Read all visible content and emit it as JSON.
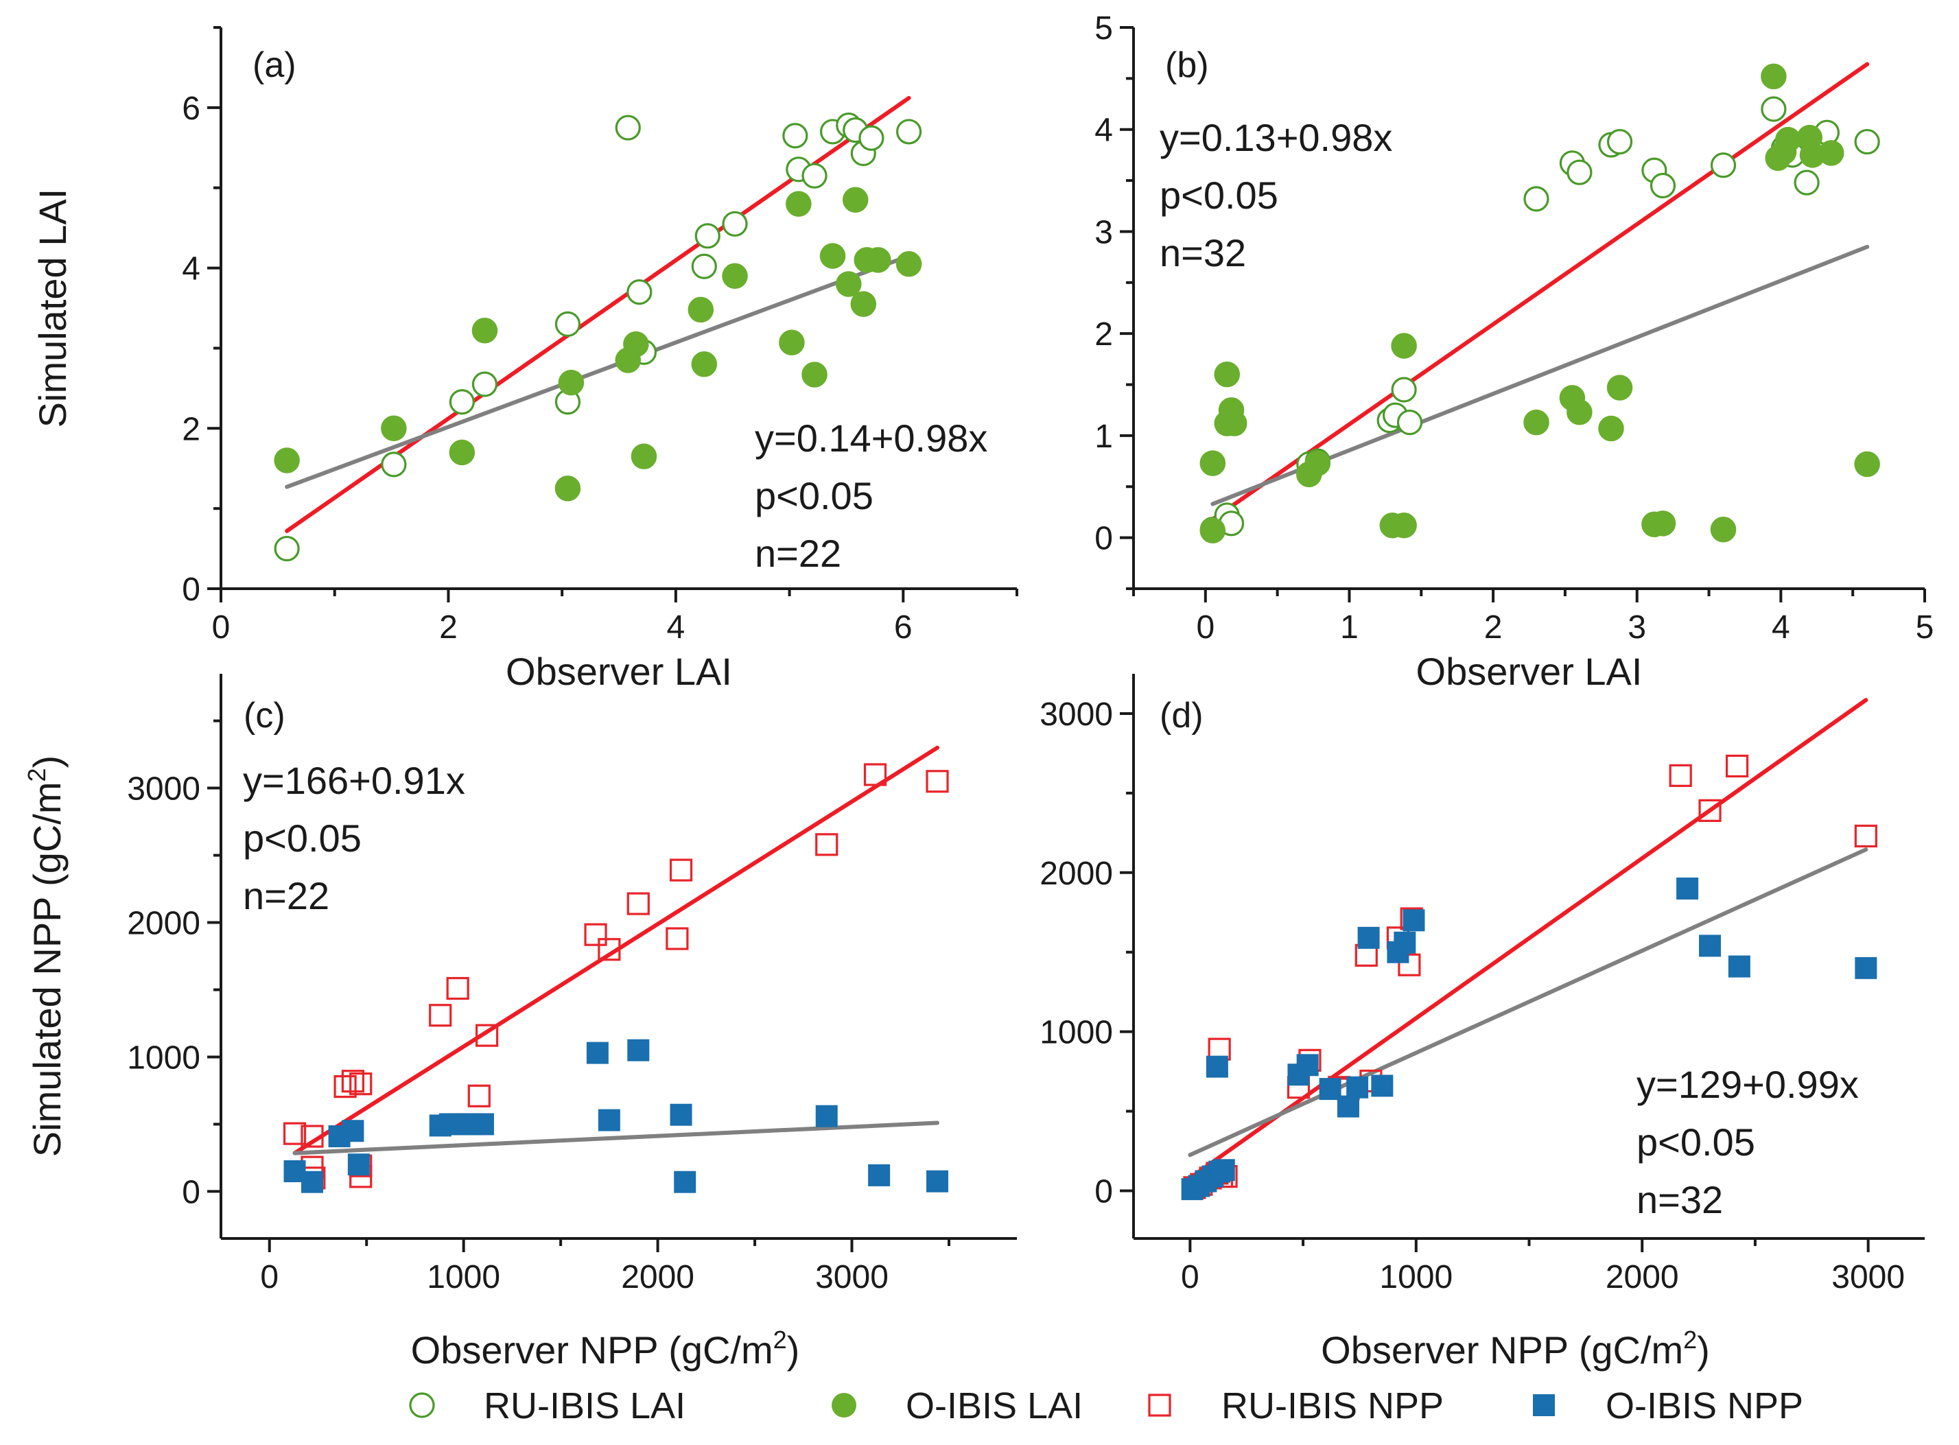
{
  "colors": {
    "ru_lai": "#4a9a2a",
    "o_lai": "#6aae2e",
    "ru_npp": "#e8242a",
    "o_npp": "#1a6fae",
    "ru_line": "#ee1c25",
    "o_line": "#808080"
  },
  "legend": [
    {
      "key": "ru_lai",
      "label": "RU-IBIS LAI",
      "marker": "open-circle"
    },
    {
      "key": "o_lai",
      "label": "O-IBIS LAI",
      "marker": "filled-circle"
    },
    {
      "key": "ru_npp",
      "label": "RU-IBIS NPP",
      "marker": "open-square"
    },
    {
      "key": "o_npp",
      "label": "O-IBIS NPP",
      "marker": "filled-square"
    }
  ],
  "chart_data": [
    {
      "id": "a",
      "type": "scatter",
      "panel_label": "(a)",
      "xlabel": "Observer LAI",
      "ylabel": "Simulated LAI",
      "xlim": [
        0,
        7
      ],
      "ylim": [
        0,
        7
      ],
      "xticks": [
        0,
        2,
        4,
        6
      ],
      "yticks": [
        0,
        2,
        4,
        6
      ],
      "stats": [
        "y=0.14+0.98x",
        "p<0.05",
        "n=22"
      ],
      "stats_position": "bottom-right",
      "series": [
        {
          "name": "RU-IBIS LAI",
          "marker": "open-circle",
          "color": "#4a9a2a",
          "points": [
            [
              0.58,
              0.5
            ],
            [
              1.52,
              1.55
            ],
            [
              2.12,
              2.33
            ],
            [
              2.32,
              2.55
            ],
            [
              3.05,
              3.3
            ],
            [
              3.05,
              2.33
            ],
            [
              3.58,
              5.75
            ],
            [
              3.68,
              3.7
            ],
            [
              3.72,
              2.95
            ],
            [
              4.25,
              4.02
            ],
            [
              4.28,
              4.4
            ],
            [
              4.52,
              4.55
            ],
            [
              5.05,
              5.65
            ],
            [
              5.08,
              5.23
            ],
            [
              5.22,
              5.15
            ],
            [
              5.38,
              5.7
            ],
            [
              5.52,
              5.78
            ],
            [
              5.58,
              5.72
            ],
            [
              5.65,
              5.43
            ],
            [
              5.72,
              5.62
            ],
            [
              6.05,
              5.7
            ]
          ]
        },
        {
          "name": "O-IBIS LAI",
          "marker": "filled-circle",
          "color": "#6aae2e",
          "points": [
            [
              0.58,
              1.6
            ],
            [
              1.52,
              2.0
            ],
            [
              2.12,
              1.7
            ],
            [
              2.32,
              3.22
            ],
            [
              3.05,
              1.25
            ],
            [
              3.08,
              2.57
            ],
            [
              3.58,
              2.85
            ],
            [
              3.65,
              3.05
            ],
            [
              3.72,
              1.65
            ],
            [
              4.25,
              2.8
            ],
            [
              4.22,
              3.48
            ],
            [
              4.52,
              3.9
            ],
            [
              5.02,
              3.07
            ],
            [
              5.08,
              4.8
            ],
            [
              5.22,
              2.67
            ],
            [
              5.38,
              4.15
            ],
            [
              5.52,
              3.8
            ],
            [
              5.58,
              4.85
            ],
            [
              5.65,
              3.55
            ],
            [
              5.68,
              4.1
            ],
            [
              5.78,
              4.1
            ],
            [
              6.05,
              4.05
            ]
          ]
        }
      ],
      "fit_lines": [
        {
          "name": "RU-IBIS fit",
          "color": "#ee1c25",
          "x": [
            0.58,
            6.05
          ],
          "y": [
            0.72,
            6.12
          ]
        },
        {
          "name": "O-IBIS fit",
          "color": "#808080",
          "x": [
            0.58,
            6.05
          ],
          "y": [
            1.27,
            4.15
          ]
        }
      ]
    },
    {
      "id": "b",
      "type": "scatter",
      "panel_label": "(b)",
      "xlabel": "Observer LAI",
      "ylabel": "",
      "xlim": [
        -0.5,
        5
      ],
      "ylim": [
        -0.5,
        5
      ],
      "xticks": [
        0,
        1,
        2,
        3,
        4,
        5
      ],
      "yticks": [
        0,
        1,
        2,
        3,
        4,
        5
      ],
      "stats": [
        "y=0.13+0.98x",
        "p<0.05",
        "n=32"
      ],
      "stats_position": "top-left",
      "series": [
        {
          "name": "RU-IBIS LAI",
          "marker": "open-circle",
          "color": "#4a9a2a",
          "points": [
            [
              0.05,
              0.08
            ],
            [
              0.15,
              0.22
            ],
            [
              0.18,
              0.14
            ],
            [
              0.72,
              0.72
            ],
            [
              0.78,
              0.75
            ],
            [
              1.28,
              1.15
            ],
            [
              1.32,
              1.2
            ],
            [
              1.38,
              1.45
            ],
            [
              1.42,
              1.13
            ],
            [
              2.3,
              3.32
            ],
            [
              2.55,
              3.67
            ],
            [
              2.6,
              3.58
            ],
            [
              2.82,
              3.85
            ],
            [
              2.88,
              3.88
            ],
            [
              3.12,
              3.6
            ],
            [
              3.18,
              3.45
            ],
            [
              3.6,
              3.65
            ],
            [
              3.95,
              4.2
            ],
            [
              4.02,
              3.82
            ],
            [
              4.08,
              3.75
            ],
            [
              4.18,
              3.48
            ],
            [
              4.32,
              3.97
            ],
            [
              4.6,
              3.88
            ]
          ]
        },
        {
          "name": "O-IBIS LAI",
          "marker": "filled-circle",
          "color": "#6aae2e",
          "points": [
            [
              0.05,
              0.73
            ],
            [
              0.05,
              0.07
            ],
            [
              0.15,
              1.6
            ],
            [
              0.15,
              1.12
            ],
            [
              0.18,
              1.25
            ],
            [
              0.2,
              1.12
            ],
            [
              0.72,
              0.62
            ],
            [
              0.78,
              0.73
            ],
            [
              1.3,
              0.12
            ],
            [
              1.38,
              0.12
            ],
            [
              1.38,
              1.88
            ],
            [
              2.3,
              1.13
            ],
            [
              2.55,
              1.37
            ],
            [
              2.6,
              1.23
            ],
            [
              2.82,
              1.07
            ],
            [
              2.88,
              1.47
            ],
            [
              3.12,
              0.13
            ],
            [
              3.18,
              0.14
            ],
            [
              3.6,
              0.08
            ],
            [
              3.95,
              4.52
            ],
            [
              3.98,
              3.72
            ],
            [
              4.02,
              3.78
            ],
            [
              4.05,
              3.9
            ],
            [
              4.2,
              3.92
            ],
            [
              4.22,
              3.75
            ],
            [
              4.35,
              3.77
            ],
            [
              4.6,
              0.72
            ]
          ]
        }
      ],
      "fit_lines": [
        {
          "name": "RU-IBIS fit",
          "color": "#ee1c25",
          "x": [
            0.05,
            4.6
          ],
          "y": [
            0.18,
            4.64
          ]
        },
        {
          "name": "O-IBIS fit",
          "color": "#808080",
          "x": [
            0.05,
            4.6
          ],
          "y": [
            0.33,
            2.85
          ]
        }
      ]
    },
    {
      "id": "c",
      "type": "scatter",
      "panel_label": "(c)",
      "xlabel_parts": [
        "Observer NPP (gC/m",
        "2",
        ")"
      ],
      "ylabel_parts": [
        "Simulated NPP (gC/m",
        "2",
        ")"
      ],
      "xlim": [
        -250,
        3850
      ],
      "ylim": [
        -350,
        3850
      ],
      "xticks": [
        0,
        1000,
        2000,
        3000
      ],
      "yticks": [
        0,
        1000,
        2000,
        3000
      ],
      "stats": [
        "y=166+0.91x",
        "p<0.05",
        "n=22"
      ],
      "stats_position": "top-left",
      "series": [
        {
          "name": "RU-IBIS NPP",
          "marker": "open-square",
          "color": "#e8242a",
          "points": [
            [
              130,
              430
            ],
            [
              220,
              410
            ],
            [
              220,
              180
            ],
            [
              230,
              100
            ],
            [
              390,
              780
            ],
            [
              430,
              820
            ],
            [
              470,
              800
            ],
            [
              470,
              110
            ],
            [
              470,
              190
            ],
            [
              880,
              1310
            ],
            [
              970,
              1510
            ],
            [
              1080,
              710
            ],
            [
              1120,
              1160
            ],
            [
              1680,
              1910
            ],
            [
              1750,
              1800
            ],
            [
              1900,
              2140
            ],
            [
              2100,
              1880
            ],
            [
              2120,
              2390
            ],
            [
              2870,
              2580
            ],
            [
              3120,
              3100
            ],
            [
              3440,
              3050
            ]
          ]
        },
        {
          "name": "O-IBIS NPP",
          "marker": "filled-square",
          "color": "#1a6fae",
          "points": [
            [
              130,
              150
            ],
            [
              220,
              70
            ],
            [
              360,
              410
            ],
            [
              430,
              450
            ],
            [
              460,
              200
            ],
            [
              880,
              490
            ],
            [
              930,
              500
            ],
            [
              980,
              500
            ],
            [
              1040,
              500
            ],
            [
              1100,
              500
            ],
            [
              1690,
              1030
            ],
            [
              1750,
              530
            ],
            [
              1900,
              1050
            ],
            [
              2120,
              570
            ],
            [
              2140,
              70
            ],
            [
              2870,
              560
            ],
            [
              3140,
              120
            ],
            [
              3440,
              75
            ]
          ]
        }
      ],
      "fit_lines": [
        {
          "name": "RU-IBIS fit",
          "color": "#ee1c25",
          "x": [
            130,
            3440
          ],
          "y": [
            285,
            3300
          ]
        },
        {
          "name": "O-IBIS fit",
          "color": "#808080",
          "x": [
            130,
            3440
          ],
          "y": [
            285,
            510
          ]
        }
      ]
    },
    {
      "id": "d",
      "type": "scatter",
      "panel_label": "(d)",
      "xlabel_parts": [
        "Observer NPP (gC/m",
        "2",
        ")"
      ],
      "ylabel": "",
      "xlim": [
        -250,
        3250
      ],
      "ylim": [
        -300,
        3250
      ],
      "xticks": [
        0,
        1000,
        2000,
        3000
      ],
      "yticks": [
        0,
        1000,
        2000,
        3000
      ],
      "stats": [
        "y=129+0.99x",
        "p<0.05",
        "n=32"
      ],
      "stats_position": "bottom-right",
      "series": [
        {
          "name": "RU-IBIS NPP",
          "marker": "open-square",
          "color": "#e8242a",
          "points": [
            [
              20,
              20
            ],
            [
              50,
              40
            ],
            [
              90,
              80
            ],
            [
              120,
              110
            ],
            [
              130,
              890
            ],
            [
              140,
              90
            ],
            [
              160,
              90
            ],
            [
              480,
              650
            ],
            [
              530,
              820
            ],
            [
              660,
              650
            ],
            [
              700,
              640
            ],
            [
              780,
              1480
            ],
            [
              800,
              690
            ],
            [
              920,
              1590
            ],
            [
              970,
              1420
            ],
            [
              980,
              1710
            ],
            [
              2170,
              2610
            ],
            [
              2300,
              2390
            ],
            [
              2420,
              2670
            ],
            [
              2990,
              2230
            ]
          ]
        },
        {
          "name": "O-IBIS NPP",
          "marker": "filled-square",
          "color": "#1a6fae",
          "points": [
            [
              10,
              10
            ],
            [
              40,
              30
            ],
            [
              70,
              60
            ],
            [
              100,
              90
            ],
            [
              120,
              780
            ],
            [
              130,
              120
            ],
            [
              150,
              130
            ],
            [
              480,
              730
            ],
            [
              520,
              790
            ],
            [
              620,
              640
            ],
            [
              700,
              530
            ],
            [
              740,
              650
            ],
            [
              790,
              1590
            ],
            [
              850,
              660
            ],
            [
              920,
              1500
            ],
            [
              950,
              1560
            ],
            [
              990,
              1700
            ],
            [
              2200,
              1900
            ],
            [
              2300,
              1540
            ],
            [
              2430,
              1410
            ],
            [
              2990,
              1400
            ]
          ]
        }
      ],
      "fit_lines": [
        {
          "name": "RU-IBIS fit",
          "color": "#ee1c25",
          "x": [
            0,
            2990
          ],
          "y": [
            80,
            3085
          ]
        },
        {
          "name": "O-IBIS fit",
          "color": "#808080",
          "x": [
            0,
            2990
          ],
          "y": [
            225,
            2145
          ]
        }
      ]
    }
  ]
}
